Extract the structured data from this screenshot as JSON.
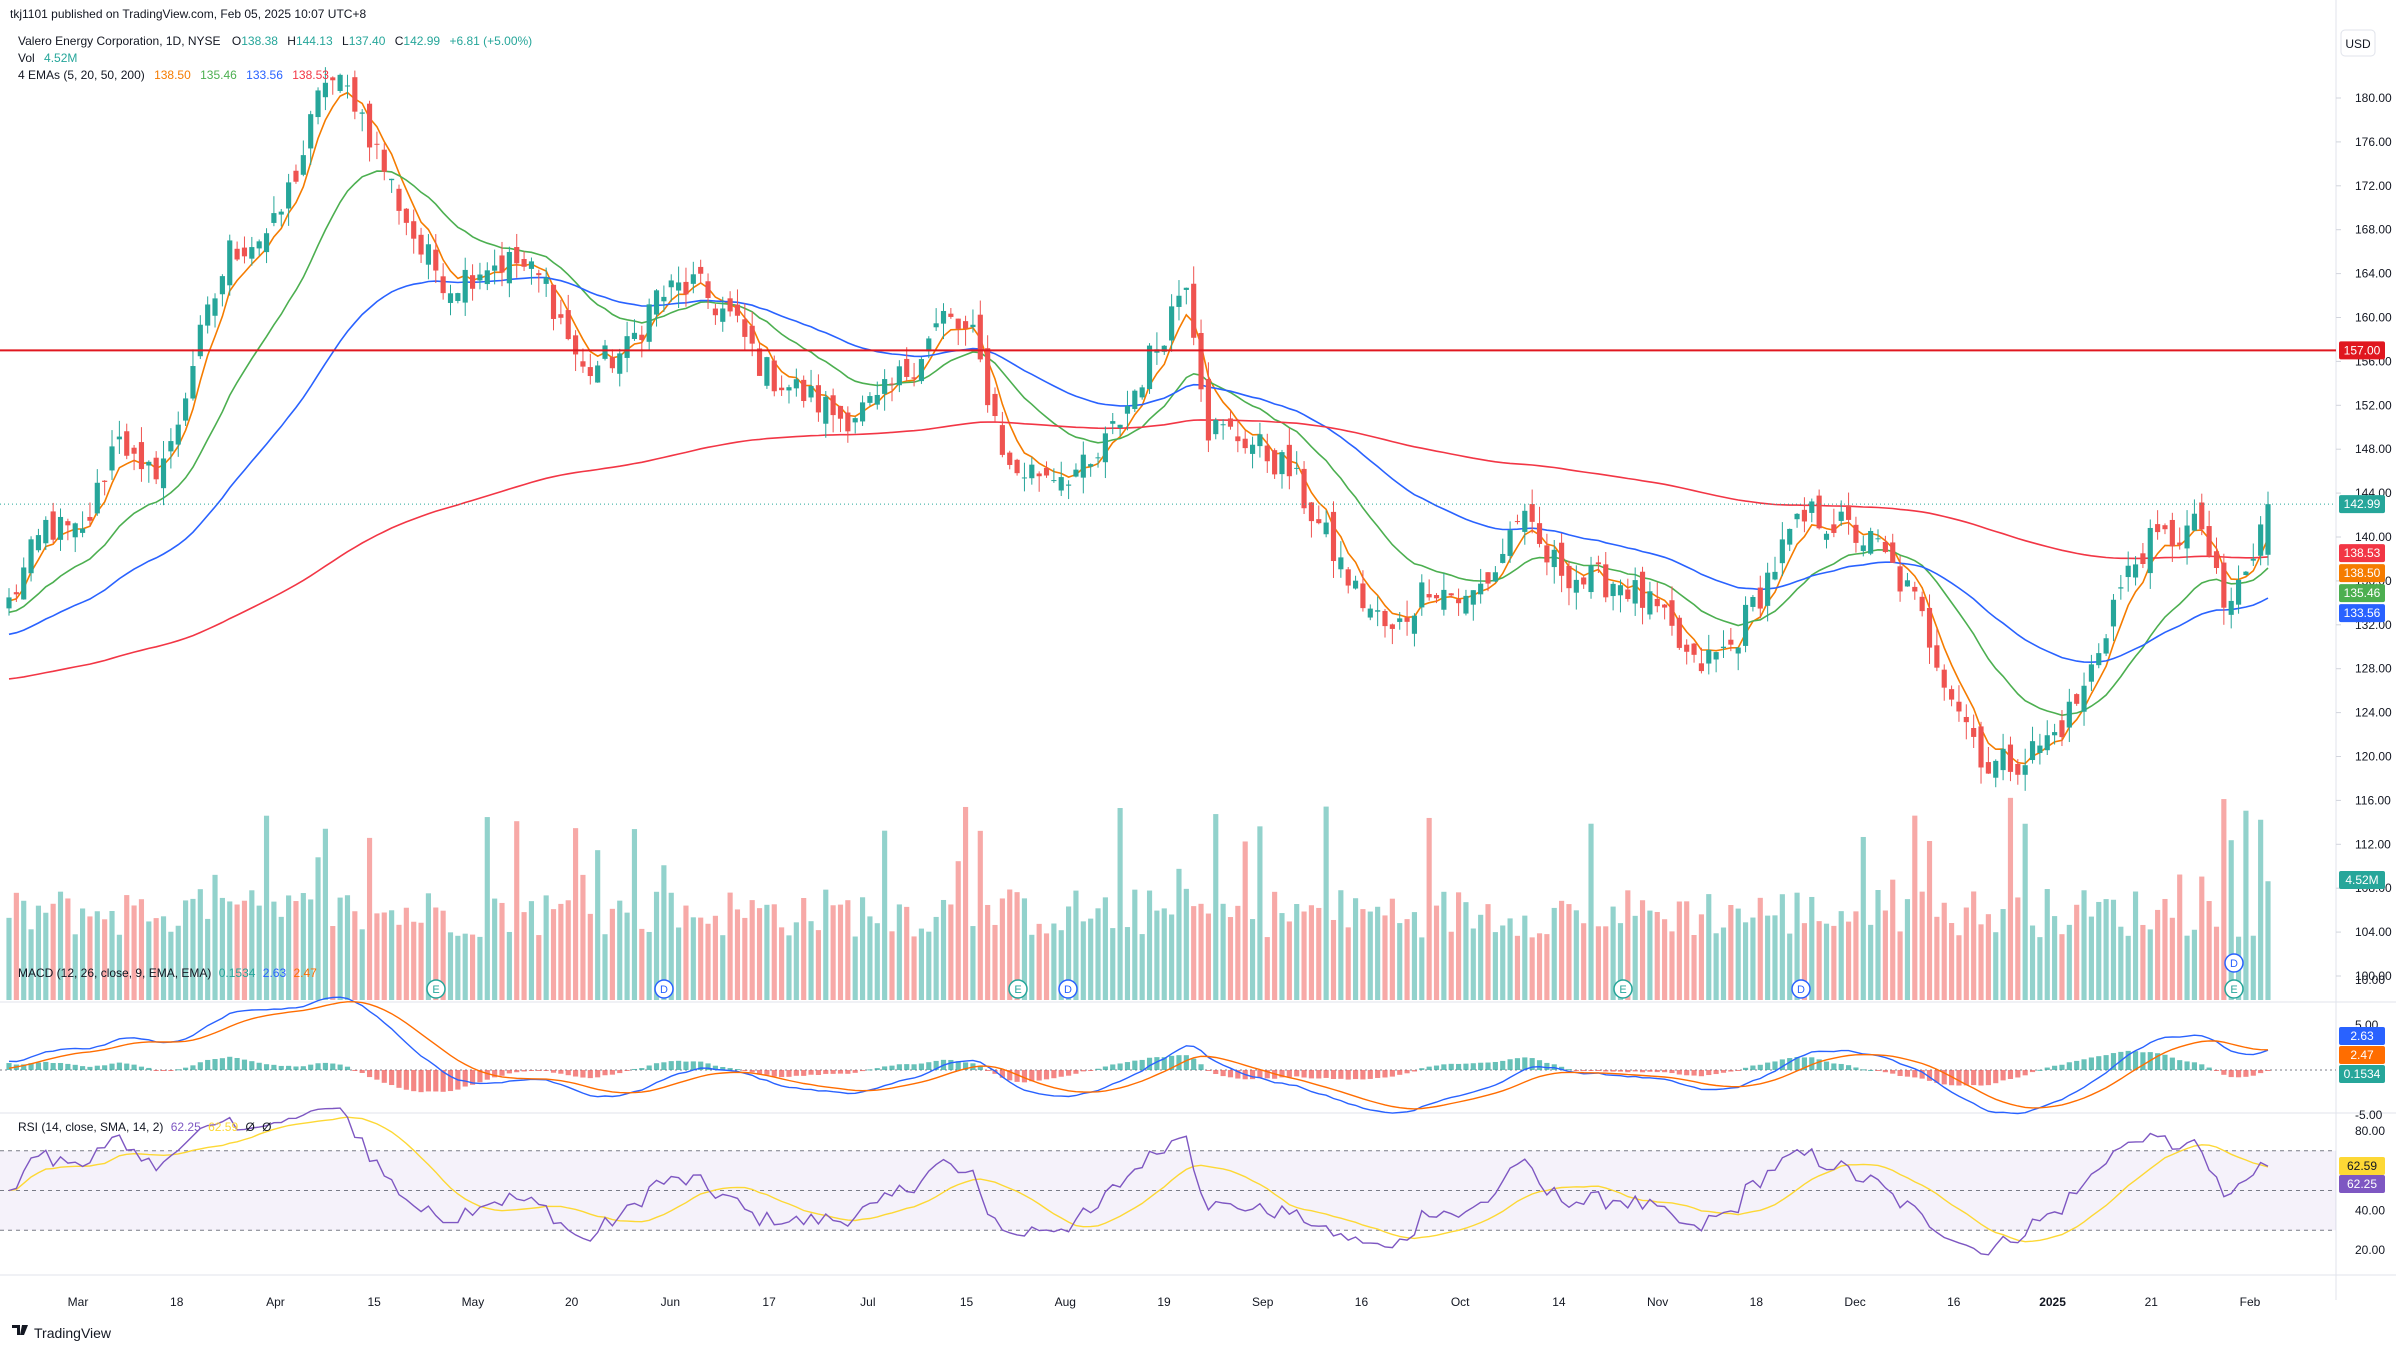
{
  "header": {
    "publish_line": "tkj1101 published on TradingView.com, Feb 05, 2025 10:07 UTC+8",
    "symbol": "Valero Energy Corporation, 1D, NYSE",
    "ohlc": {
      "o_label": "O",
      "o": "138.38",
      "h_label": "H",
      "h": "144.13",
      "l_label": "L",
      "l": "137.40",
      "c_label": "C",
      "c": "142.99",
      "change": "+6.81 (+5.00%)"
    },
    "vol_label": "Vol",
    "vol_value": "4.52M",
    "ema_label": "4 EMAs (5, 20, 50, 200)",
    "ema_values": [
      "138.50",
      "135.46",
      "133.56",
      "138.53"
    ]
  },
  "currency": "USD",
  "brand": "TradingView",
  "colors": {
    "up": "#26a69a",
    "down": "#ef5350",
    "vol_up": "#92d2cc",
    "vol_down": "#f7a9a7",
    "ema5": "#f57c00",
    "ema20": "#4caf50",
    "ema50": "#2962ff",
    "ema200": "#f23645",
    "hline": "#e0171f",
    "macd": "#2962ff",
    "signal": "#ff6d00",
    "rsi": "#7e57c2",
    "rsi_ma": "#fdd835"
  },
  "price_axis": {
    "ticks": [
      "180.00",
      "176.00",
      "172.00",
      "168.00",
      "164.00",
      "160.00",
      "156.00",
      "152.00",
      "148.00",
      "144.00",
      "140.00",
      "136.00",
      "132.00",
      "128.00",
      "124.00",
      "120.00",
      "116.00",
      "112.00",
      "108.00",
      "104.00",
      "100.00"
    ]
  },
  "price_badges": [
    {
      "label": "157.00",
      "value": 157.0,
      "color": "#e0171f"
    },
    {
      "label": "142.99",
      "value": 142.99,
      "color": "#26a69a"
    },
    {
      "label": "138.53",
      "value": 138.53,
      "color": "#f23645"
    },
    {
      "label": "138.50",
      "value": 138.5,
      "color": "#f57c00"
    },
    {
      "label": "135.46",
      "value": 135.46,
      "color": "#4caf50"
    },
    {
      "label": "133.56",
      "value": 133.56,
      "color": "#2962ff"
    },
    {
      "label": "4.52M",
      "value": null,
      "color": "#26a69a"
    }
  ],
  "hline_value": 157.0,
  "x_axis": {
    "labels": [
      "Mar",
      "18",
      "Apr",
      "15",
      "May",
      "20",
      "Jun",
      "17",
      "Jul",
      "15",
      "Aug",
      "19",
      "Sep",
      "16",
      "Oct",
      "14",
      "Nov",
      "18",
      "Dec",
      "16",
      "2025",
      "21",
      "Feb"
    ]
  },
  "events": [
    "E",
    "D",
    "E",
    "D",
    "E",
    "D",
    "D",
    "E"
  ],
  "macd": {
    "label": "MACD (12, 26, close, 9, EMA, EMA)",
    "values": [
      "0.1534",
      "2.63",
      "2.47"
    ],
    "axis": [
      "10.00",
      "5.00",
      "-5.00"
    ],
    "badges": [
      "2.63",
      "2.47",
      "0.1534"
    ]
  },
  "rsi": {
    "label": "RSI (14, close, SMA, 14, 2)",
    "values": [
      "62.25",
      "62.59",
      "Ø",
      "Ø"
    ],
    "axis": [
      "80.00",
      "60.00",
      "40.00",
      "20.00"
    ],
    "badges": [
      "62.59",
      "62.25"
    ]
  },
  "chart_data": {
    "type": "candlestick",
    "title": "Valero Energy Corporation, 1D, NYSE",
    "ylim": [
      98,
      184
    ],
    "x_labels": [
      "Mar",
      "18",
      "Apr",
      "15",
      "May",
      "20",
      "Jun",
      "17",
      "Jul",
      "15",
      "Aug",
      "19",
      "Sep",
      "16",
      "Oct",
      "14",
      "Nov",
      "18",
      "Dec",
      "16",
      "2025",
      "21",
      "Feb"
    ],
    "close_path": [
      [
        0,
        134
      ],
      [
        5,
        141
      ],
      [
        10,
        140
      ],
      [
        15,
        150
      ],
      [
        18,
        145
      ],
      [
        22,
        148
      ],
      [
        25,
        156
      ],
      [
        30,
        166
      ],
      [
        36,
        168
      ],
      [
        40,
        175
      ],
      [
        43,
        182
      ],
      [
        47,
        180
      ],
      [
        52,
        172
      ],
      [
        56,
        166
      ],
      [
        60,
        163
      ],
      [
        65,
        165
      ],
      [
        69,
        165
      ],
      [
        73,
        163
      ],
      [
        78,
        155
      ],
      [
        84,
        157
      ],
      [
        88,
        162
      ],
      [
        93,
        163
      ],
      [
        98,
        160
      ],
      [
        103,
        155
      ],
      [
        108,
        153
      ],
      [
        113,
        151
      ],
      [
        118,
        152
      ],
      [
        123,
        156
      ],
      [
        127,
        160
      ],
      [
        131,
        158
      ],
      [
        136,
        146
      ],
      [
        142,
        146
      ],
      [
        147,
        146
      ],
      [
        152,
        152
      ],
      [
        157,
        159
      ],
      [
        160,
        164
      ],
      [
        163,
        150
      ],
      [
        168,
        149
      ],
      [
        174,
        146
      ],
      [
        178,
        141
      ],
      [
        183,
        135
      ],
      [
        188,
        131
      ],
      [
        193,
        136
      ],
      [
        198,
        134
      ],
      [
        202,
        137
      ],
      [
        205,
        142
      ],
      [
        209,
        138
      ],
      [
        214,
        136
      ],
      [
        219,
        136
      ],
      [
        224,
        133
      ],
      [
        229,
        128
      ],
      [
        234,
        130
      ],
      [
        238,
        135
      ],
      [
        242,
        140
      ],
      [
        245,
        142
      ],
      [
        249,
        141
      ],
      [
        254,
        139
      ],
      [
        259,
        134
      ],
      [
        264,
        126
      ],
      [
        269,
        119
      ],
      [
        274,
        120
      ],
      [
        278,
        122
      ],
      [
        282,
        126
      ],
      [
        286,
        134
      ],
      [
        290,
        139
      ],
      [
        294,
        140
      ],
      [
        298,
        141
      ],
      [
        301,
        133
      ],
      [
        305,
        138
      ],
      [
        307,
        143
      ]
    ],
    "volume_millions_approx_range": [
      0.5,
      13.0
    ],
    "last": {
      "open": 138.38,
      "high": 144.13,
      "low": 137.4,
      "close": 142.99,
      "change": 6.81,
      "change_pct": 5.0,
      "volume": "4.52M"
    },
    "horizontal_line": 157.0,
    "ema": {
      "5": 138.5,
      "20": 135.46,
      "50": 133.56,
      "200": 138.53
    },
    "macd": {
      "macd": 2.63,
      "signal": 2.47,
      "hist": 0.1534,
      "ylim": [
        -6,
        10
      ]
    },
    "rsi": {
      "rsi": 62.25,
      "ma": 62.59,
      "bands": [
        70,
        50,
        30
      ],
      "ylim": [
        17,
        84
      ]
    }
  }
}
